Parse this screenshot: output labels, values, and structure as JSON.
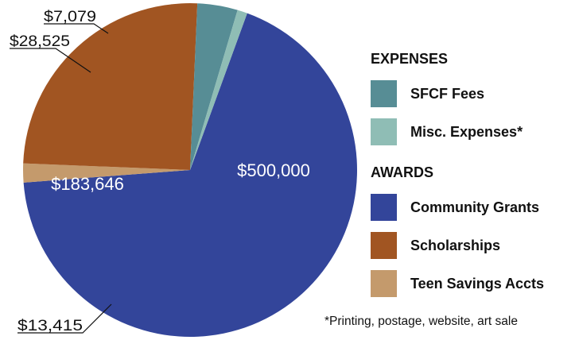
{
  "chart_data": {
    "type": "pie",
    "title": "",
    "start_angle_deg": 20,
    "series": [
      {
        "name": "",
        "slices": [
          {
            "label": "Community Grants",
            "value": 500000,
            "value_label": "$500,000",
            "color": "#33459A",
            "label_style": "inside"
          },
          {
            "label": "Teen Savings Accts",
            "value": 13415,
            "value_label": "$13,415",
            "color": "#C49A6C",
            "label_style": "callout"
          },
          {
            "label": "Scholarships",
            "value": 183646,
            "value_label": "$183,646",
            "color": "#A15522",
            "label_style": "inside"
          },
          {
            "label": "SFCF Fees",
            "value": 28525,
            "value_label": "$28,525",
            "color": "#578D95",
            "label_style": "callout"
          },
          {
            "label": "Misc. Expenses*",
            "value": 7079,
            "value_label": "$7,079",
            "color": "#8FBDB5",
            "label_style": "callout"
          }
        ]
      }
    ],
    "legend": {
      "placement": "right",
      "groups": [
        {
          "title": "EXPENSES",
          "items": [
            {
              "label": "SFCF Fees",
              "color": "#578D95"
            },
            {
              "label": "Misc. Expenses*",
              "color": "#8FBDB5"
            }
          ]
        },
        {
          "title": "AWARDS",
          "items": [
            {
              "label": "Community Grants",
              "color": "#33459A"
            },
            {
              "label": "Scholarships",
              "color": "#A15522"
            },
            {
              "label": "Teen Savings Accts",
              "color": "#C49A6C"
            }
          ]
        }
      ]
    },
    "footnote": "*Printing, postage, website, art sale"
  }
}
